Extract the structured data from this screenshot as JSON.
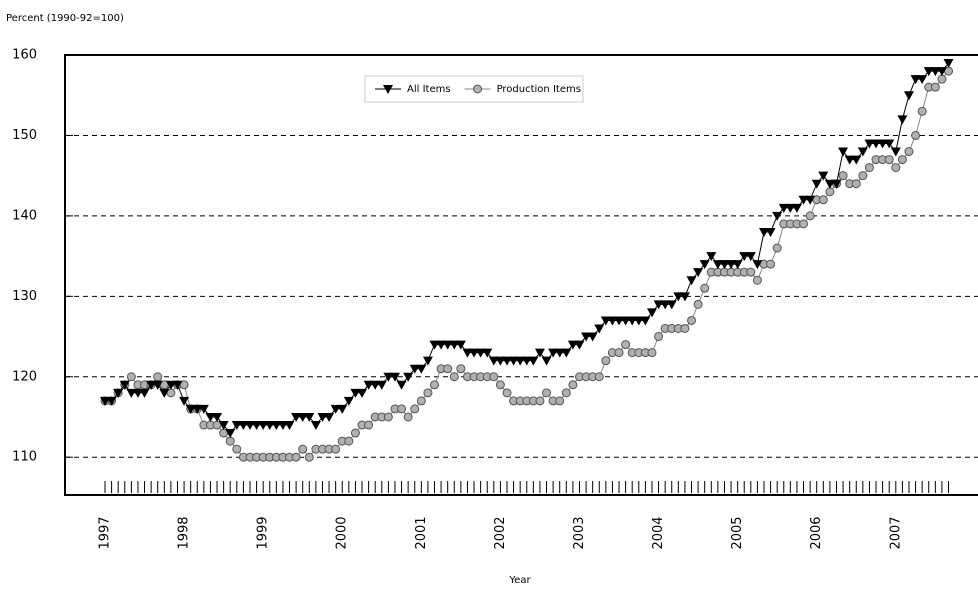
{
  "chart_data": {
    "type": "line",
    "y_axis_label": "Percent (1990-92=100)",
    "x_axis_label": "Year",
    "categories": [
      "1997",
      null,
      null,
      null,
      null,
      null,
      null,
      null,
      null,
      null,
      null,
      null,
      "1998",
      null,
      null,
      null,
      null,
      null,
      null,
      null,
      null,
      null,
      null,
      null,
      "1999",
      null,
      null,
      null,
      null,
      null,
      null,
      null,
      null,
      null,
      null,
      null,
      "2000",
      null,
      null,
      null,
      null,
      null,
      null,
      null,
      null,
      null,
      null,
      null,
      "2001",
      null,
      null,
      null,
      null,
      null,
      null,
      null,
      null,
      null,
      null,
      null,
      "2002",
      null,
      null,
      null,
      null,
      null,
      null,
      null,
      null,
      null,
      null,
      null,
      "2003",
      null,
      null,
      null,
      null,
      null,
      null,
      null,
      null,
      null,
      null,
      null,
      "2004",
      null,
      null,
      null,
      null,
      null,
      null,
      null,
      null,
      null,
      null,
      null,
      "2005",
      null,
      null,
      null,
      null,
      null,
      null,
      null,
      null,
      null,
      null,
      null,
      "2006",
      null,
      null,
      null,
      null,
      null,
      null,
      null,
      null,
      null,
      null,
      null,
      "2007",
      null,
      null,
      null,
      null,
      null,
      null,
      null,
      null
    ],
    "series": [
      {
        "name": "All Items",
        "color": "#000000",
        "marker": "triangle-down",
        "values": [
          117,
          117,
          118,
          119,
          118,
          118,
          118,
          119,
          119,
          118,
          119,
          119,
          117,
          116,
          116,
          116,
          115,
          115,
          114,
          113,
          114,
          114,
          114,
          114,
          114,
          114,
          114,
          114,
          114,
          115,
          115,
          115,
          114,
          115,
          115,
          116,
          116,
          117,
          118,
          118,
          119,
          119,
          119,
          120,
          120,
          119,
          120,
          121,
          121,
          122,
          124,
          124,
          124,
          124,
          124,
          123,
          123,
          123,
          123,
          122,
          122,
          122,
          122,
          122,
          122,
          122,
          123,
          122,
          123,
          123,
          123,
          124,
          124,
          125,
          125,
          126,
          127,
          127,
          127,
          127,
          127,
          127,
          127,
          128,
          129,
          129,
          129,
          130,
          130,
          132,
          133,
          134,
          135,
          134,
          134,
          134,
          134,
          135,
          135,
          134,
          138,
          138,
          140,
          141,
          141,
          141,
          142,
          142,
          144,
          145,
          144,
          144,
          148,
          147,
          147,
          148,
          149,
          149,
          149,
          149,
          148,
          152,
          155,
          157,
          157,
          158,
          158,
          158,
          159
        ]
      },
      {
        "name": "Production Items",
        "color": "#b0b0b0",
        "marker": "circle",
        "values": [
          117,
          117,
          118,
          119,
          120,
          119,
          119,
          119,
          120,
          119,
          118,
          119,
          119,
          116,
          116,
          114,
          114,
          114,
          113,
          112,
          111,
          110,
          110,
          110,
          110,
          110,
          110,
          110,
          110,
          110,
          111,
          110,
          111,
          111,
          111,
          111,
          112,
          112,
          113,
          114,
          114,
          115,
          115,
          115,
          116,
          116,
          115,
          116,
          117,
          118,
          119,
          121,
          121,
          120,
          121,
          120,
          120,
          120,
          120,
          120,
          119,
          118,
          117,
          117,
          117,
          117,
          117,
          118,
          117,
          117,
          118,
          119,
          120,
          120,
          120,
          120,
          122,
          123,
          123,
          124,
          123,
          123,
          123,
          123,
          125,
          126,
          126,
          126,
          126,
          127,
          129,
          131,
          133,
          133,
          133,
          133,
          133,
          133,
          133,
          132,
          134,
          134,
          136,
          139,
          139,
          139,
          139,
          140,
          142,
          142,
          143,
          144,
          145,
          144,
          144,
          145,
          146,
          147,
          147,
          147,
          146,
          147,
          148,
          150,
          153,
          156,
          156,
          157,
          158
        ]
      }
    ],
    "ylim": [
      105.3,
      160
    ],
    "yticks": [
      110,
      120,
      130,
      140,
      150,
      160
    ],
    "grid": true,
    "legend": "top"
  }
}
